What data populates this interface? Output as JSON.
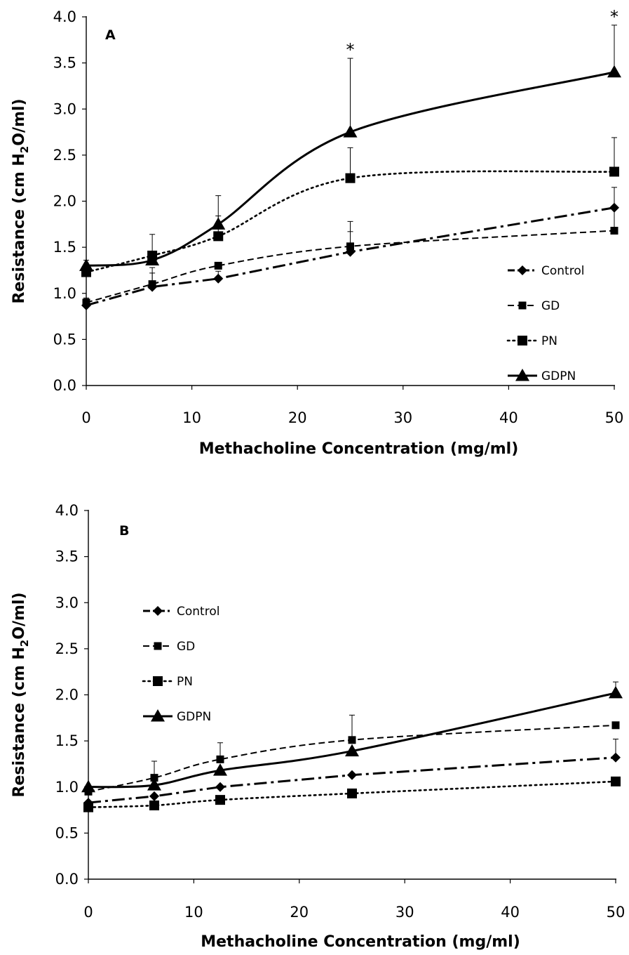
{
  "chart_data": [
    {
      "type": "line",
      "panel_label": "A",
      "xlabel": "Methacholine Concentration (mg/ml)",
      "ylabel": "Resistance (cm H2O/ml)",
      "ylabel_parts": [
        "Resistance (cm H",
        "2",
        "O/ml)"
      ],
      "xlim": [
        0,
        50
      ],
      "ylim": [
        0,
        4
      ],
      "xticks": [
        "0",
        "10",
        "20",
        "30",
        "40",
        "50"
      ],
      "yticks": [
        "0.0",
        "0.5",
        "1.0",
        "1.5",
        "2.0",
        "2.5",
        "3.0",
        "3.5",
        "4.0"
      ],
      "grid": false,
      "legend_position": "right",
      "x": [
        0,
        6.25,
        12.5,
        25,
        50
      ],
      "series": [
        {
          "name": "Control",
          "marker": "diamond",
          "line": "dashdot",
          "smooth": false,
          "values": [
            0.87,
            1.07,
            1.16,
            1.45,
            1.93
          ],
          "err": [
            0.08,
            0.15,
            0.08,
            0.22,
            0.22
          ]
        },
        {
          "name": "GD",
          "marker": "square-small",
          "line": "dashed",
          "smooth": true,
          "values": [
            0.9,
            1.1,
            1.3,
            1.51,
            1.68
          ],
          "err": [
            0.04,
            0.18,
            0.0,
            0.27,
            0.24
          ]
        },
        {
          "name": "PN",
          "marker": "square",
          "line": "dotted",
          "smooth": true,
          "values": [
            1.23,
            1.41,
            1.62,
            2.25,
            2.32
          ],
          "err": [
            0.0,
            0.23,
            0.22,
            0.33,
            0.37
          ]
        },
        {
          "name": "GDPN",
          "marker": "triangle",
          "line": "solid",
          "smooth": true,
          "values": [
            1.3,
            1.36,
            1.75,
            2.75,
            3.4
          ],
          "err": [
            0.06,
            0.0,
            0.31,
            0.8,
            0.51
          ]
        }
      ],
      "annotations": [
        {
          "text": "*",
          "x": 25,
          "y": 3.55
        },
        {
          "text": "*",
          "x": 50,
          "y": 3.91
        }
      ]
    },
    {
      "type": "line",
      "panel_label": "B",
      "xlabel": "Methacholine Concentration (mg/ml)",
      "ylabel": "Resistance (cm H2O/ml)",
      "ylabel_parts": [
        "Resistance (cm H",
        "2",
        "O/ml)"
      ],
      "xlim": [
        0,
        50
      ],
      "ylim": [
        0,
        4
      ],
      "xticks": [
        "0",
        "10",
        "20",
        "30",
        "40",
        "50"
      ],
      "yticks": [
        "0.0",
        "0.5",
        "1.0",
        "1.5",
        "2.0",
        "2.5",
        "3.0",
        "3.5",
        "4.0"
      ],
      "grid": false,
      "legend_position": "left",
      "x": [
        0,
        6.25,
        12.5,
        25,
        50
      ],
      "series": [
        {
          "name": "Control",
          "marker": "diamond",
          "line": "dashdot",
          "smooth": false,
          "values": [
            0.83,
            0.9,
            1.0,
            1.13,
            1.32
          ],
          "err": [
            0.0,
            0.0,
            0.0,
            0.0,
            0.2
          ]
        },
        {
          "name": "GD",
          "marker": "square-small",
          "line": "dashed",
          "smooth": true,
          "values": [
            0.95,
            1.1,
            1.3,
            1.51,
            1.67
          ],
          "err": [
            0.0,
            0.18,
            0.18,
            0.27,
            0.0
          ]
        },
        {
          "name": "PN",
          "marker": "square",
          "line": "dotted",
          "smooth": true,
          "values": [
            0.78,
            0.8,
            0.86,
            0.93,
            1.06
          ],
          "err": [
            0.0,
            0.0,
            0.0,
            0.0,
            0.0
          ]
        },
        {
          "name": "GDPN",
          "marker": "triangle",
          "line": "solid",
          "smooth": true,
          "values": [
            1.0,
            1.02,
            1.18,
            1.39,
            2.02
          ],
          "err": [
            0.0,
            0.0,
            0.0,
            0.0,
            0.12
          ]
        }
      ],
      "annotations": []
    }
  ]
}
